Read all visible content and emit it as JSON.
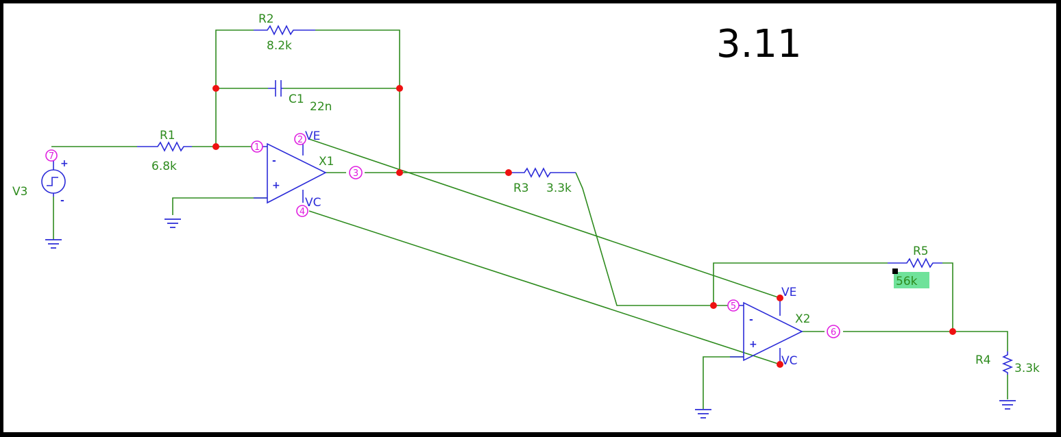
{
  "title": "3.11",
  "components": {
    "R1": {
      "ref": "R1",
      "value": "6.8k"
    },
    "R2": {
      "ref": "R2",
      "value": "8.2k"
    },
    "R3": {
      "ref": "R3",
      "value": "3.3k"
    },
    "R4": {
      "ref": "R4",
      "value": "3.3k"
    },
    "R5": {
      "ref": "R5",
      "value": "56k"
    },
    "C1": {
      "ref": "C1",
      "value": "22n"
    },
    "V3": {
      "ref": "V3"
    },
    "X1": {
      "ref": "X1",
      "vp": "VE",
      "vn": "VC"
    },
    "X2": {
      "ref": "X2",
      "vp": "VE",
      "vn": "VC"
    }
  },
  "nodes": [
    "7",
    "1",
    "2",
    "3",
    "4",
    "5",
    "6"
  ],
  "signs": {
    "plus": "+",
    "minus": "-"
  },
  "colors": {
    "wire": "#2e8b1e",
    "component": "#2b2bd8",
    "junction": "#ee1111",
    "node": "#e020e0",
    "highlight": "#6fe29a"
  }
}
